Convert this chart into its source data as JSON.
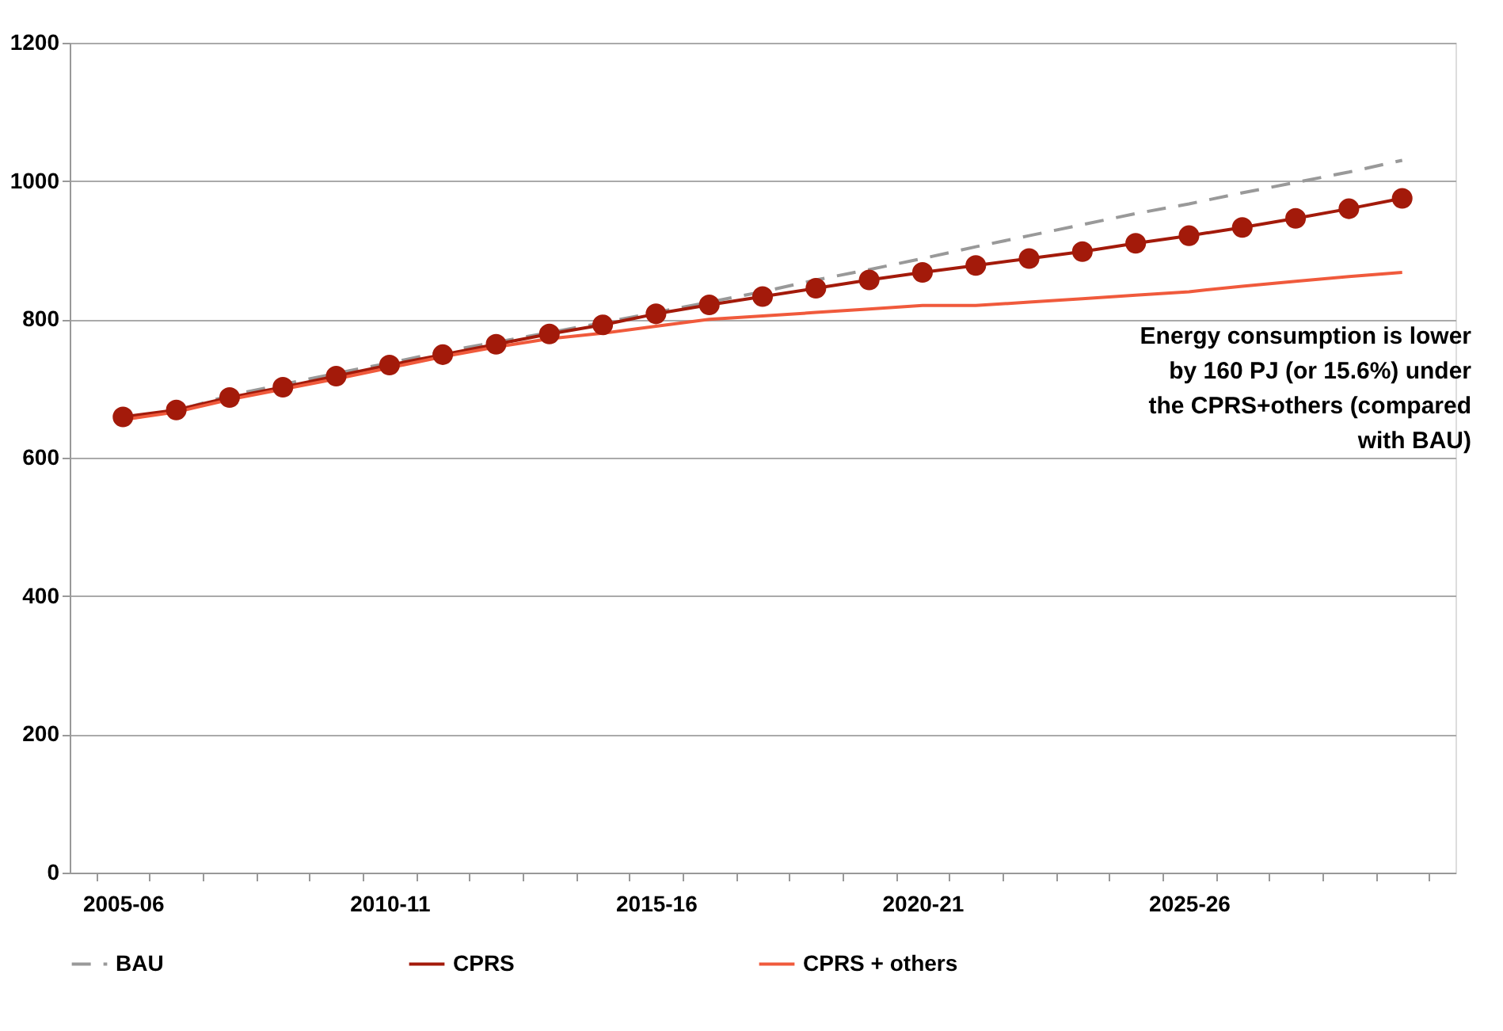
{
  "chart_data": {
    "type": "line",
    "categories": [
      "2005-06",
      null,
      null,
      null,
      null,
      "2010-11",
      null,
      null,
      null,
      null,
      "2015-16",
      null,
      null,
      null,
      null,
      "2020-21",
      null,
      null,
      null,
      null,
      "2025-26",
      null,
      null,
      null,
      null
    ],
    "series": [
      {
        "name": "BAU",
        "color": "#999999",
        "line_style": "dashed",
        "marker": "none",
        "values": [
          655,
          668,
          690,
          706,
          722,
          737,
          753,
          767,
          781,
          795,
          810,
          825,
          840,
          857,
          872,
          888,
          905,
          921,
          937,
          953,
          967,
          983,
          998,
          1013,
          1030
        ]
      },
      {
        "name": "CPRS",
        "color": "#a31a0a",
        "line_style": "solid",
        "marker": "circle",
        "values": [
          659,
          669,
          687,
          702,
          718,
          734,
          749,
          764,
          779,
          792,
          808,
          821,
          833,
          845,
          857,
          868,
          878,
          888,
          898,
          910,
          921,
          933,
          946,
          960,
          975
        ]
      },
      {
        "name": "CPRS + others",
        "color": "#f05a3c",
        "line_style": "solid",
        "marker": "none",
        "values": [
          655,
          666,
          684,
          699,
          714,
          730,
          746,
          760,
          772,
          780,
          790,
          800,
          805,
          810,
          815,
          820,
          820,
          825,
          830,
          835,
          840,
          848,
          855,
          862,
          868
        ]
      }
    ],
    "ylim": [
      0,
      1200
    ],
    "yticks": [
      0,
      200,
      400,
      600,
      800,
      1000,
      1200
    ],
    "grid": "y",
    "legend": "bottom",
    "annotations": [
      "Energy consumption is lower\nby 160 PJ (or 15.6%) under\nthe CPRS+others (compared\nwith BAU)"
    ]
  }
}
